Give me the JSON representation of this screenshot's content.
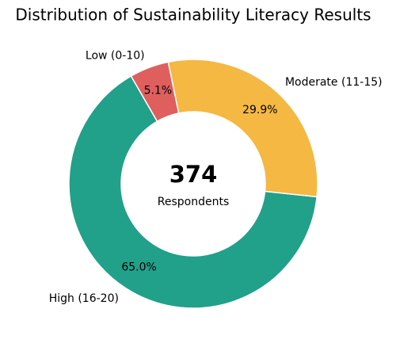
{
  "chart_data": {
    "type": "donut",
    "title": "Distribution of Sustainability Literacy Results",
    "categories": [
      "Low (0-10)",
      "Moderate (11-15)",
      "High (16-20)"
    ],
    "values": [
      5.1,
      29.9,
      65.0
    ],
    "value_labels": [
      "5.1%",
      "29.9%",
      "65.0%"
    ],
    "colors": [
      "#df5f5f",
      "#f4b843",
      "#21a08a"
    ],
    "center_value": 374,
    "center_label": "Respondents"
  }
}
